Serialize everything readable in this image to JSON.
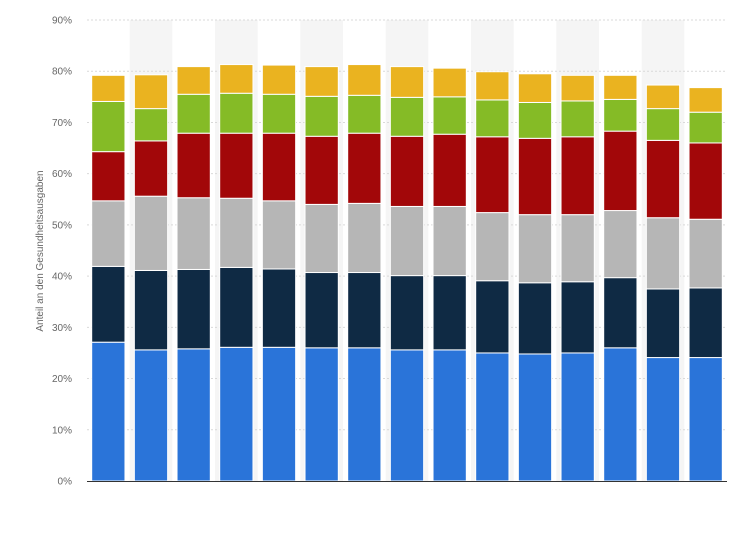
{
  "chart_data": {
    "type": "bar",
    "stacked": true,
    "title": "",
    "xlabel": "",
    "ylabel": "Anteil an den Gesundheitsausgaben",
    "ylim": [
      0,
      90
    ],
    "yticks": [
      "0%",
      "10%",
      "20%",
      "30%",
      "40%",
      "50%",
      "60%",
      "70%",
      "80%",
      "90%"
    ],
    "grid": true,
    "categories": [
      "",
      "",
      "",
      "",
      "",
      "",
      "",
      "",
      "",
      "",
      "",
      "",
      "",
      "",
      ""
    ],
    "series": [
      {
        "color": "#2a74d9",
        "values": [
          27.1,
          25.6,
          25.8,
          26.1,
          26.1,
          26.0,
          26.0,
          25.6,
          25.6,
          25.0,
          24.8,
          25.0,
          26.0,
          24.1,
          24.1
        ]
      },
      {
        "color": "#0f2a44",
        "values": [
          14.8,
          15.5,
          15.5,
          15.6,
          15.3,
          14.7,
          14.7,
          14.5,
          14.5,
          14.1,
          13.9,
          13.9,
          13.7,
          13.4,
          13.6
        ]
      },
      {
        "color": "#b6b6b6",
        "values": [
          12.8,
          14.5,
          14.0,
          13.5,
          13.3,
          13.3,
          13.5,
          13.5,
          13.5,
          13.3,
          13.3,
          13.1,
          13.1,
          13.9,
          13.4
        ]
      },
      {
        "color": "#a20709",
        "values": [
          9.6,
          10.8,
          12.6,
          12.7,
          13.2,
          13.3,
          13.7,
          13.7,
          14.1,
          14.8,
          14.9,
          15.2,
          15.5,
          15.1,
          14.9
        ]
      },
      {
        "color": "#85bb26",
        "values": [
          9.8,
          6.3,
          7.6,
          7.8,
          7.6,
          7.8,
          7.4,
          7.6,
          7.3,
          7.2,
          7.0,
          7.0,
          6.2,
          6.2,
          6.0
        ]
      },
      {
        "color": "#eab320",
        "values": [
          5.1,
          6.6,
          5.4,
          5.6,
          5.7,
          5.8,
          6.0,
          6.0,
          5.6,
          5.5,
          5.6,
          5.0,
          4.7,
          4.6,
          4.8
        ]
      }
    ]
  }
}
